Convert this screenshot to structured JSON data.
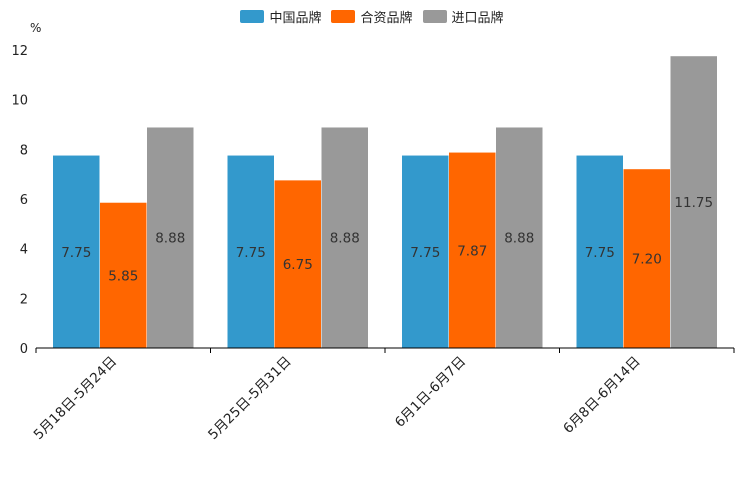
{
  "chart_data": {
    "type": "bar",
    "categories": [
      "5月18日-5月24日",
      "5月25日-5月31日",
      "6月1日-6月7日",
      "6月8日-6月14日"
    ],
    "series": [
      {
        "name": "中国品牌",
        "values": [
          7.75,
          7.75,
          7.75,
          7.75
        ],
        "labels": [
          "7.75",
          "7.75",
          "7.75",
          "7.75"
        ],
        "color": "#3399cc"
      },
      {
        "name": "合资品牌",
        "values": [
          5.85,
          6.75,
          7.87,
          7.2
        ],
        "labels": [
          "5.85",
          "6.75",
          "7.87",
          "7.20"
        ],
        "color": "#ff6600"
      },
      {
        "name": "进口品牌",
        "values": [
          8.88,
          8.88,
          8.88,
          11.75
        ],
        "labels": [
          "8.88",
          "8.88",
          "8.88",
          "11.75"
        ],
        "color": "#999999"
      }
    ],
    "ylabel": "%",
    "ylim": [
      0,
      12
    ],
    "yticks": [
      0,
      2,
      4,
      6,
      8,
      10,
      12
    ],
    "legend_position": "top-center",
    "grid": false
  }
}
